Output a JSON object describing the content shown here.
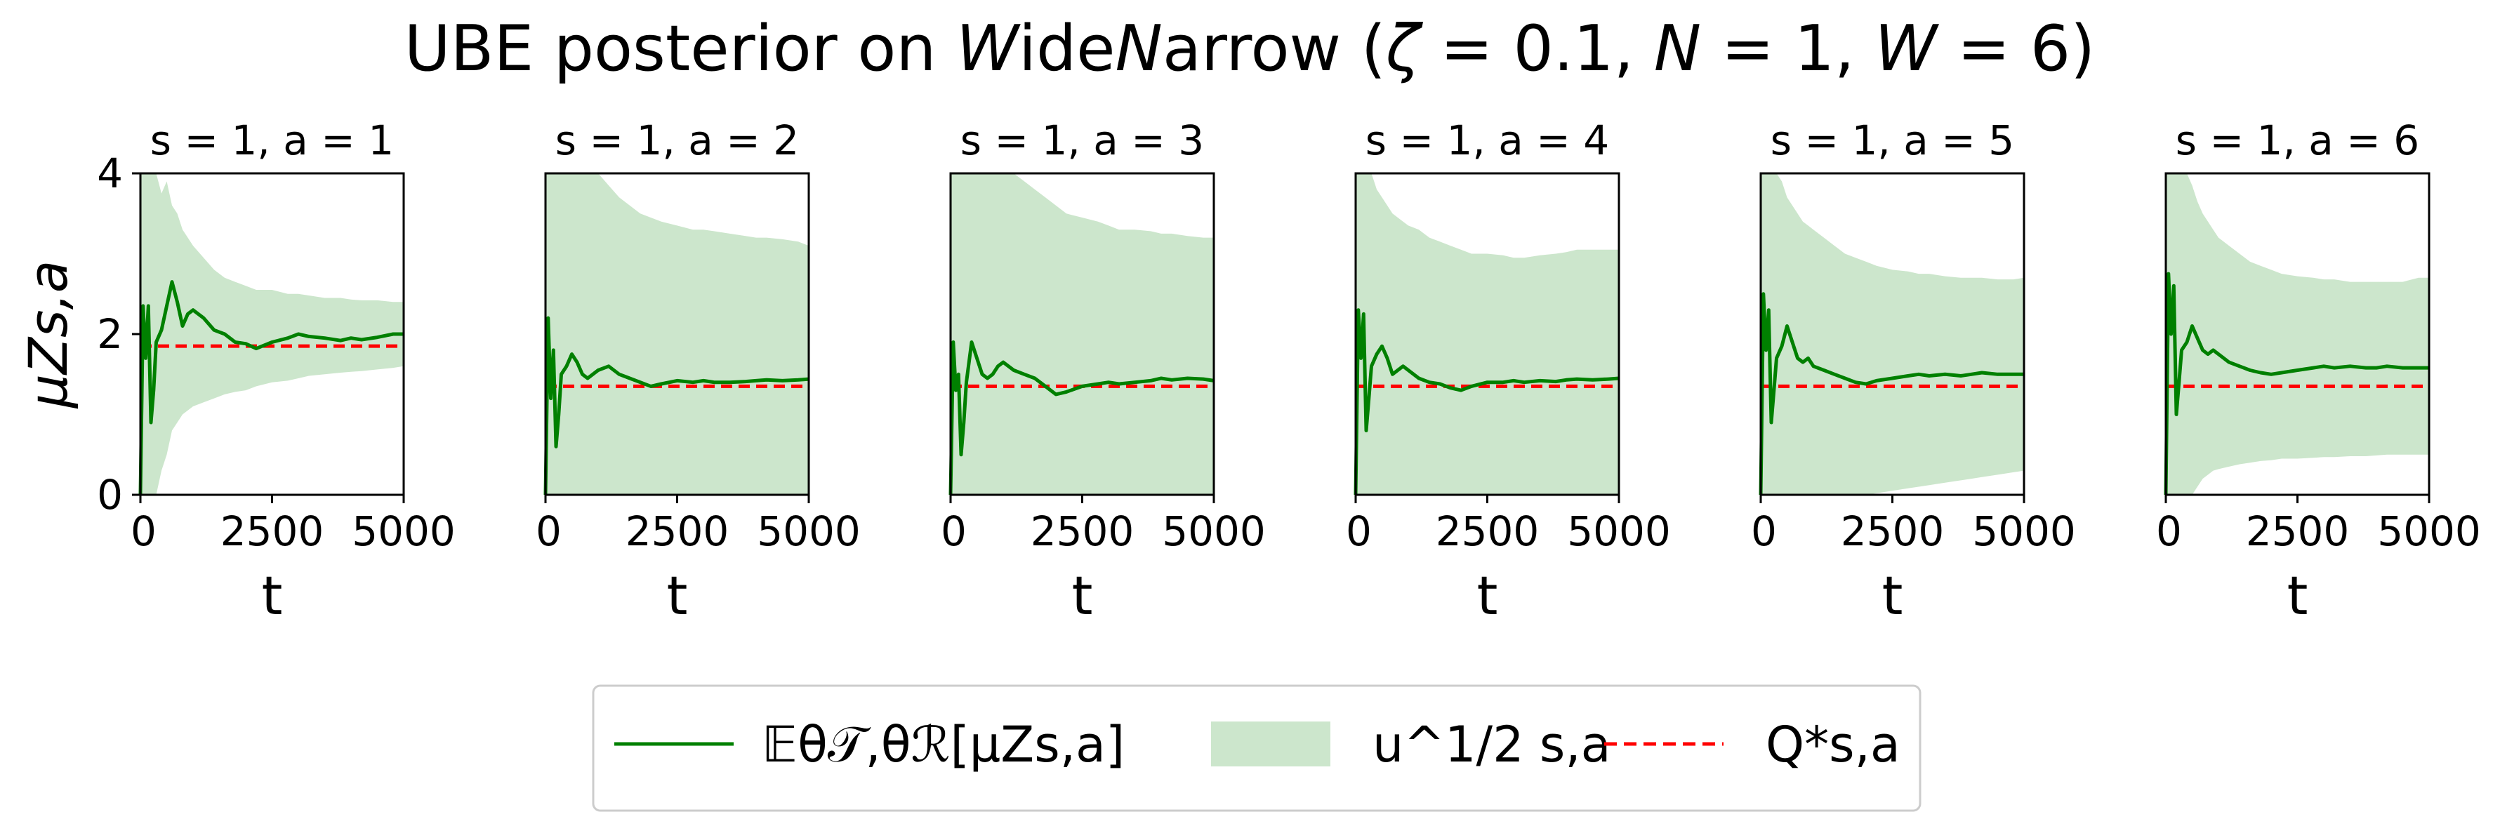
{
  "figure": {
    "title": "UBE posterior on WideNarrow (ζ = 0.1, N = 1, W = 6)"
  },
  "legend": {
    "mean_label": "𝔼θ𝒯,θℛ[μZs,a]",
    "band_label": "u^1/2 s,a",
    "q_label": "Q*s,a",
    "placement": "bottom-center"
  },
  "colors": {
    "mean": "#008000",
    "band": "#cce6cc",
    "q_star": "#ff0000"
  },
  "chart_data": [
    {
      "type": "line",
      "title": "s = 1, a = 1",
      "xlabel": "t",
      "ylabel": "μZs,a",
      "xlim": [
        0,
        5000
      ],
      "ylim": [
        0,
        4
      ],
      "xticks": [
        "0",
        "2500",
        "5000"
      ],
      "yticks": [
        "0",
        "2",
        "4"
      ],
      "q_star": 1.85,
      "x": [
        0,
        50,
        100,
        150,
        200,
        250,
        300,
        400,
        500,
        600,
        700,
        800,
        900,
        1000,
        1200,
        1400,
        1600,
        1800,
        2000,
        2200,
        2500,
        2800,
        3000,
        3200,
        3500,
        3800,
        4000,
        4200,
        4500,
        4800,
        5000
      ],
      "series": [
        {
          "role": "mean",
          "values": [
            0.0,
            2.35,
            1.7,
            2.35,
            0.9,
            1.3,
            1.9,
            2.05,
            2.35,
            2.65,
            2.4,
            2.1,
            2.25,
            2.3,
            2.2,
            2.05,
            2.0,
            1.9,
            1.88,
            1.82,
            1.9,
            1.95,
            2.0,
            1.97,
            1.95,
            1.92,
            1.95,
            1.93,
            1.96,
            2.0,
            2.0
          ]
        },
        {
          "role": "upper",
          "values": [
            4.0,
            4.0,
            4.0,
            4.0,
            4.0,
            4.0,
            4.0,
            3.75,
            3.9,
            3.6,
            3.5,
            3.3,
            3.2,
            3.1,
            2.95,
            2.8,
            2.7,
            2.65,
            2.6,
            2.55,
            2.55,
            2.5,
            2.5,
            2.48,
            2.45,
            2.45,
            2.43,
            2.42,
            2.42,
            2.4,
            2.4
          ]
        },
        {
          "role": "lower",
          "values": [
            0.0,
            0.0,
            0.0,
            0.0,
            0.0,
            0.0,
            0.0,
            0.3,
            0.5,
            0.8,
            0.9,
            1.0,
            1.05,
            1.1,
            1.15,
            1.2,
            1.25,
            1.28,
            1.3,
            1.35,
            1.4,
            1.42,
            1.45,
            1.48,
            1.5,
            1.52,
            1.53,
            1.54,
            1.56,
            1.58,
            1.6
          ]
        }
      ]
    },
    {
      "type": "line",
      "title": "s = 1, a = 2",
      "xlabel": "t",
      "xlim": [
        0,
        5000
      ],
      "ylim": [
        0,
        4
      ],
      "xticks": [
        "0",
        "2500",
        "5000"
      ],
      "q_star": 1.35,
      "x": [
        0,
        50,
        100,
        150,
        200,
        250,
        300,
        400,
        500,
        600,
        700,
        800,
        900,
        1000,
        1200,
        1400,
        1600,
        1800,
        2000,
        2200,
        2500,
        2800,
        3000,
        3200,
        3500,
        3800,
        4000,
        4200,
        4500,
        4800,
        5000
      ],
      "series": [
        {
          "role": "mean",
          "values": [
            0.0,
            2.2,
            1.2,
            1.8,
            0.6,
            1.0,
            1.5,
            1.6,
            1.75,
            1.65,
            1.5,
            1.45,
            1.5,
            1.55,
            1.6,
            1.5,
            1.45,
            1.4,
            1.35,
            1.38,
            1.42,
            1.4,
            1.42,
            1.4,
            1.4,
            1.41,
            1.42,
            1.43,
            1.42,
            1.43,
            1.44
          ]
        },
        {
          "role": "upper",
          "values": [
            4.0,
            4.0,
            4.0,
            4.0,
            4.0,
            4.0,
            4.0,
            4.0,
            4.0,
            4.0,
            4.0,
            4.0,
            4.0,
            4.0,
            3.85,
            3.7,
            3.6,
            3.5,
            3.45,
            3.4,
            3.35,
            3.3,
            3.3,
            3.28,
            3.25,
            3.22,
            3.2,
            3.2,
            3.18,
            3.15,
            3.1
          ]
        },
        {
          "role": "lower",
          "values": [
            0.0,
            0.0,
            0.0,
            0.0,
            0.0,
            0.0,
            0.0,
            0.0,
            0.0,
            0.0,
            0.0,
            0.0,
            0.0,
            0.0,
            0.0,
            0.0,
            0.0,
            0.0,
            0.0,
            0.0,
            0.0,
            0.0,
            0.0,
            0.0,
            0.0,
            0.0,
            0.0,
            0.0,
            0.0,
            0.0,
            0.0
          ]
        }
      ]
    },
    {
      "type": "line",
      "title": "s = 1, a = 3",
      "xlabel": "t",
      "xlim": [
        0,
        5000
      ],
      "ylim": [
        0,
        4
      ],
      "xticks": [
        "0",
        "2500",
        "5000"
      ],
      "q_star": 1.35,
      "x": [
        0,
        50,
        100,
        150,
        200,
        250,
        300,
        400,
        500,
        600,
        700,
        800,
        900,
        1000,
        1200,
        1400,
        1600,
        1800,
        2000,
        2200,
        2500,
        2800,
        3000,
        3200,
        3500,
        3800,
        4000,
        4200,
        4500,
        4800,
        5000
      ],
      "series": [
        {
          "role": "mean",
          "values": [
            0.0,
            1.9,
            1.3,
            1.5,
            0.5,
            0.9,
            1.4,
            1.9,
            1.7,
            1.5,
            1.45,
            1.5,
            1.6,
            1.65,
            1.55,
            1.5,
            1.45,
            1.35,
            1.25,
            1.28,
            1.35,
            1.38,
            1.4,
            1.38,
            1.4,
            1.42,
            1.45,
            1.43,
            1.45,
            1.44,
            1.42
          ]
        },
        {
          "role": "upper",
          "values": [
            4.0,
            4.0,
            4.0,
            4.0,
            4.0,
            4.0,
            4.0,
            4.0,
            4.0,
            4.0,
            4.0,
            4.0,
            4.0,
            4.0,
            4.0,
            3.9,
            3.8,
            3.7,
            3.6,
            3.5,
            3.45,
            3.4,
            3.35,
            3.3,
            3.3,
            3.28,
            3.25,
            3.25,
            3.22,
            3.2,
            3.2
          ]
        },
        {
          "role": "lower",
          "values": [
            0.0,
            0.0,
            0.0,
            0.0,
            0.0,
            0.0,
            0.0,
            0.0,
            0.0,
            0.0,
            0.0,
            0.0,
            0.0,
            0.0,
            0.0,
            0.0,
            0.0,
            0.0,
            0.0,
            0.0,
            0.0,
            0.0,
            0.0,
            0.0,
            0.0,
            0.0,
            0.0,
            0.0,
            0.0,
            0.0,
            0.0
          ]
        }
      ]
    },
    {
      "type": "line",
      "title": "s = 1, a = 4",
      "xlabel": "t",
      "xlim": [
        0,
        5000
      ],
      "ylim": [
        0,
        4
      ],
      "xticks": [
        "0",
        "2500",
        "5000"
      ],
      "q_star": 1.35,
      "x": [
        0,
        50,
        100,
        150,
        200,
        250,
        300,
        400,
        500,
        600,
        700,
        800,
        900,
        1000,
        1200,
        1400,
        1600,
        1800,
        2000,
        2200,
        2500,
        2800,
        3000,
        3200,
        3500,
        3800,
        4000,
        4200,
        4500,
        4800,
        5000
      ],
      "series": [
        {
          "role": "mean",
          "values": [
            0.0,
            2.3,
            1.7,
            2.25,
            0.8,
            1.2,
            1.6,
            1.75,
            1.85,
            1.7,
            1.5,
            1.55,
            1.6,
            1.55,
            1.45,
            1.4,
            1.38,
            1.33,
            1.3,
            1.35,
            1.4,
            1.4,
            1.42,
            1.4,
            1.42,
            1.41,
            1.43,
            1.44,
            1.43,
            1.44,
            1.45
          ]
        },
        {
          "role": "upper",
          "values": [
            4.0,
            4.0,
            4.0,
            4.0,
            4.0,
            4.0,
            4.0,
            3.8,
            3.7,
            3.6,
            3.5,
            3.45,
            3.4,
            3.35,
            3.3,
            3.2,
            3.15,
            3.1,
            3.05,
            3.0,
            3.0,
            2.98,
            2.95,
            2.95,
            2.98,
            3.0,
            3.02,
            3.05,
            3.05,
            3.05,
            3.05
          ]
        },
        {
          "role": "lower",
          "values": [
            0.0,
            0.0,
            0.0,
            0.0,
            0.0,
            0.0,
            0.0,
            0.0,
            0.0,
            0.0,
            0.0,
            0.0,
            0.0,
            0.0,
            0.0,
            0.0,
            0.0,
            0.0,
            0.0,
            0.0,
            0.0,
            0.0,
            0.0,
            0.0,
            0.0,
            0.0,
            0.0,
            0.0,
            0.0,
            0.0,
            0.0
          ]
        }
      ]
    },
    {
      "type": "line",
      "title": "s = 1, a = 5",
      "xlabel": "t",
      "xlim": [
        0,
        5000
      ],
      "ylim": [
        0,
        4
      ],
      "xticks": [
        "0",
        "2500",
        "5000"
      ],
      "q_star": 1.35,
      "x": [
        0,
        50,
        100,
        150,
        200,
        250,
        300,
        400,
        500,
        600,
        700,
        800,
        900,
        1000,
        1200,
        1400,
        1600,
        1800,
        2000,
        2200,
        2500,
        2800,
        3000,
        3200,
        3500,
        3800,
        4000,
        4200,
        4500,
        4800,
        5000
      ],
      "series": [
        {
          "role": "mean",
          "values": [
            0.0,
            2.5,
            1.8,
            2.3,
            0.9,
            1.3,
            1.7,
            1.85,
            2.1,
            1.9,
            1.7,
            1.65,
            1.7,
            1.6,
            1.55,
            1.5,
            1.45,
            1.4,
            1.38,
            1.42,
            1.45,
            1.48,
            1.5,
            1.48,
            1.5,
            1.48,
            1.5,
            1.52,
            1.5,
            1.5,
            1.5
          ]
        },
        {
          "role": "upper",
          "values": [
            4.0,
            4.0,
            4.0,
            4.0,
            4.0,
            4.0,
            4.0,
            3.9,
            3.7,
            3.6,
            3.5,
            3.4,
            3.35,
            3.3,
            3.2,
            3.1,
            3.0,
            2.95,
            2.9,
            2.85,
            2.8,
            2.78,
            2.75,
            2.75,
            2.72,
            2.7,
            2.7,
            2.7,
            2.68,
            2.68,
            2.7
          ]
        },
        {
          "role": "lower",
          "values": [
            0.0,
            0.0,
            0.0,
            0.0,
            0.0,
            0.0,
            0.0,
            0.0,
            0.0,
            0.0,
            0.0,
            0.0,
            0.0,
            0.0,
            0.0,
            0.0,
            0.0,
            0.0,
            0.0,
            0.02,
            0.05,
            0.08,
            0.1,
            0.12,
            0.15,
            0.18,
            0.2,
            0.22,
            0.25,
            0.28,
            0.3
          ]
        }
      ]
    },
    {
      "type": "line",
      "title": "s = 1, a = 6",
      "xlabel": "t",
      "xlim": [
        0,
        5000
      ],
      "ylim": [
        0,
        4
      ],
      "xticks": [
        "0",
        "2500",
        "5000"
      ],
      "q_star": 1.35,
      "x": [
        0,
        50,
        100,
        150,
        200,
        250,
        300,
        400,
        500,
        600,
        700,
        800,
        900,
        1000,
        1200,
        1400,
        1600,
        1800,
        2000,
        2200,
        2500,
        2800,
        3000,
        3200,
        3500,
        3800,
        4000,
        4200,
        4500,
        4800,
        5000
      ],
      "series": [
        {
          "role": "mean",
          "values": [
            0.0,
            2.75,
            2.0,
            2.6,
            1.0,
            1.4,
            1.8,
            1.9,
            2.1,
            1.95,
            1.8,
            1.75,
            1.8,
            1.75,
            1.65,
            1.6,
            1.55,
            1.52,
            1.5,
            1.52,
            1.55,
            1.58,
            1.6,
            1.58,
            1.6,
            1.58,
            1.58,
            1.6,
            1.58,
            1.58,
            1.58
          ]
        },
        {
          "role": "upper",
          "values": [
            4.0,
            4.0,
            4.0,
            4.0,
            4.0,
            4.0,
            4.0,
            4.0,
            3.85,
            3.65,
            3.5,
            3.4,
            3.3,
            3.2,
            3.1,
            3.0,
            2.9,
            2.85,
            2.8,
            2.75,
            2.72,
            2.7,
            2.68,
            2.68,
            2.65,
            2.65,
            2.65,
            2.65,
            2.65,
            2.7,
            2.7
          ]
        },
        {
          "role": "lower",
          "values": [
            0.0,
            0.0,
            0.0,
            0.0,
            0.0,
            0.0,
            0.0,
            0.0,
            0.0,
            0.1,
            0.2,
            0.25,
            0.3,
            0.32,
            0.35,
            0.38,
            0.4,
            0.42,
            0.43,
            0.45,
            0.45,
            0.46,
            0.47,
            0.47,
            0.48,
            0.48,
            0.49,
            0.5,
            0.5,
            0.5,
            0.5
          ]
        }
      ]
    }
  ]
}
